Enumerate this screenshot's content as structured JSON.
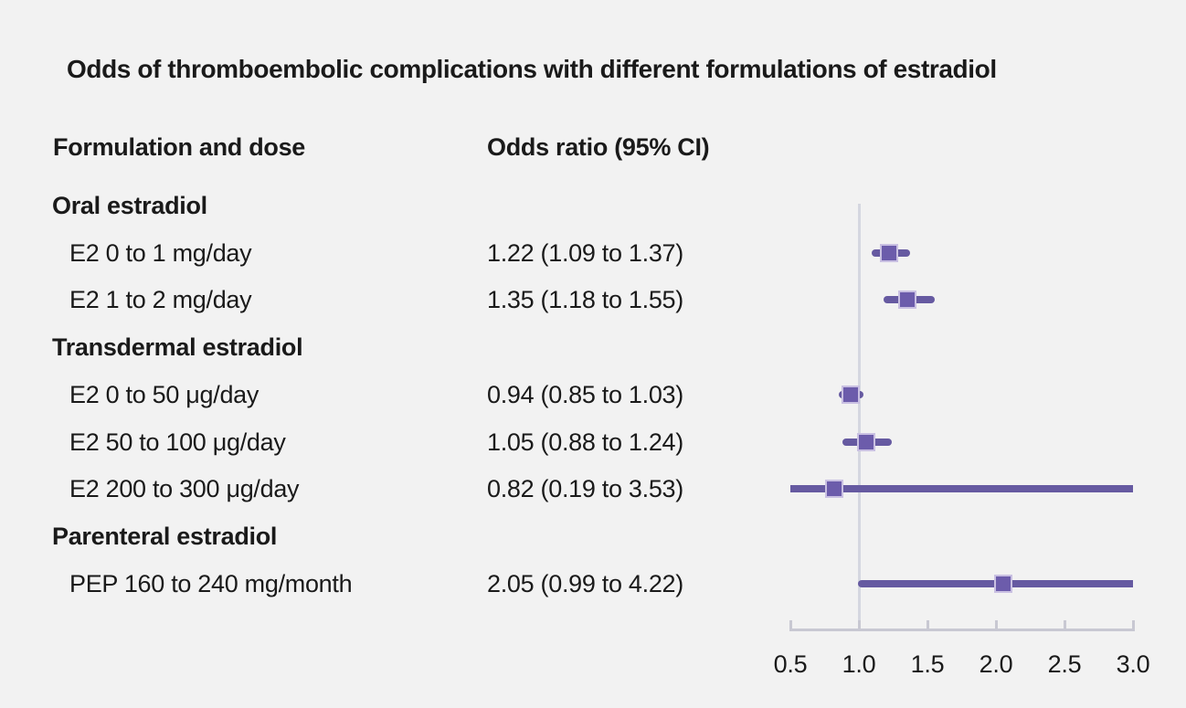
{
  "chart_data": {
    "type": "forest",
    "title": "Odds of thromboembolic complications with different formulations of estradiol",
    "col1_header": "Formulation and dose",
    "col2_header": "Odds ratio (95% CI)",
    "axis": {
      "min": 0.5,
      "max": 3.0,
      "tick_values": [
        0.5,
        1.0,
        1.5,
        2.0,
        2.5,
        3.0
      ],
      "tick_labels": [
        "0.5",
        "1.0",
        "1.5",
        "2.0",
        "2.5",
        "3.0"
      ],
      "reference_line": 1.0
    },
    "rows": [
      {
        "kind": "section",
        "label": "Oral estradiol"
      },
      {
        "kind": "item",
        "label": "E2 0 to 1 mg/day",
        "value_text": "1.22 (1.09 to 1.37)",
        "or": 1.22,
        "ci_low": 1.09,
        "ci_high": 1.37
      },
      {
        "kind": "item",
        "label": "E2 1 to 2 mg/day",
        "value_text": "1.35 (1.18 to 1.55)",
        "or": 1.35,
        "ci_low": 1.18,
        "ci_high": 1.55
      },
      {
        "kind": "section",
        "label": "Transdermal estradiol"
      },
      {
        "kind": "item",
        "label": "E2 0 to 50 μg/day",
        "value_text": "0.94 (0.85 to 1.03)",
        "or": 0.94,
        "ci_low": 0.85,
        "ci_high": 1.03
      },
      {
        "kind": "item",
        "label": "E2 50 to 100 μg/day",
        "value_text": "1.05 (0.88 to 1.24)",
        "or": 1.05,
        "ci_low": 0.88,
        "ci_high": 1.24
      },
      {
        "kind": "item",
        "label": "E2 200 to 300 μg/day",
        "value_text": "0.82 (0.19 to 3.53)",
        "or": 0.82,
        "ci_low": 0.19,
        "ci_high": 3.53
      },
      {
        "kind": "section",
        "label": "Parenteral estradiol"
      },
      {
        "kind": "item",
        "label": "PEP 160 to 240 mg/month",
        "value_text": "2.05 (0.99 to 4.22)",
        "or": 2.05,
        "ci_low": 0.99,
        "ci_high": 4.22
      }
    ],
    "colors": {
      "accent_purple": "#665aa1",
      "marker_purple": "#6c5cab",
      "marker_edge": "#c9c0e2",
      "axis_gray": "#c8c8d2",
      "reference_line_gray": "#d5d7e0",
      "text": "#1a1a1a",
      "background": "#f2f2f2"
    }
  }
}
